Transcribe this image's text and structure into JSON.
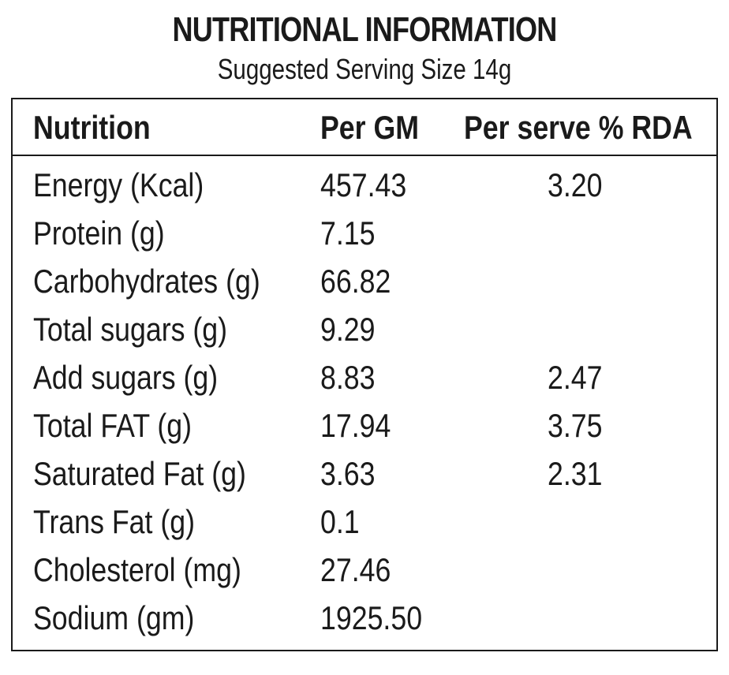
{
  "title": "NUTRITIONAL INFORMATION",
  "subtitle": "Suggested Serving Size 14g",
  "table": {
    "headers": [
      "Nutrition",
      "Per GM",
      "Per serve % RDA"
    ],
    "rows": [
      {
        "nutrient": "Energy (Kcal)",
        "per_gm": "457.43",
        "rda": "3.20"
      },
      {
        "nutrient": "Protein (g)",
        "per_gm": "7.15",
        "rda": ""
      },
      {
        "nutrient": "Carbohydrates (g)",
        "per_gm": "66.82",
        "rda": ""
      },
      {
        "nutrient": "Total sugars (g)",
        "per_gm": "9.29",
        "rda": ""
      },
      {
        "nutrient": "Add sugars (g)",
        "per_gm": "8.83",
        "rda": "2.47"
      },
      {
        "nutrient": "Total FAT (g)",
        "per_gm": "17.94",
        "rda": "3.75"
      },
      {
        "nutrient": "Saturated Fat (g)",
        "per_gm": "3.63",
        "rda": "2.31"
      },
      {
        "nutrient": "Trans Fat (g)",
        "per_gm": "0.1",
        "rda": ""
      },
      {
        "nutrient": "Cholesterol (mg)",
        "per_gm": "27.46",
        "rda": ""
      },
      {
        "nutrient": "Sodium (gm)",
        "per_gm": "1925.50",
        "rda": ""
      }
    ]
  }
}
